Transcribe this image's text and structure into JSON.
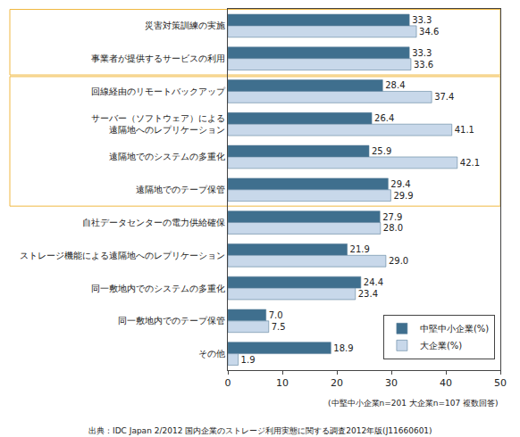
{
  "chart_data": {
    "type": "bar",
    "orientation": "horizontal",
    "categories": [
      "災害対策訓練の実施",
      "事業者が提供するサービスの利用",
      "回線経由のリモートバックアップ",
      "サーバー（ソフトウェア）による遠隔地へのレプリケーション",
      "遠隔地でのシステムの多重化",
      "遠隔地でのテープ保管",
      "自社データセンターの電力供給確保",
      "ストレージ機能による遠隔地へのレプリケーション",
      "同一敷地内でのシステムの多重化",
      "同一敷地内でのテープ保管",
      "その他"
    ],
    "series": [
      {
        "name": "中堅中小企業(%)",
        "color": "#3f6f8e",
        "values": [
          33.3,
          33.3,
          28.4,
          26.4,
          25.9,
          29.4,
          27.9,
          21.9,
          24.4,
          7.0,
          18.9
        ],
        "value_labels": [
          "33.3",
          "33.3",
          "28.4",
          "26.4",
          "25.9",
          "29.4",
          "27.9",
          "21.9",
          "24.4",
          "7.0",
          "18.9"
        ]
      },
      {
        "name": "大企業(%)",
        "color": "#c8d8ea",
        "values": [
          34.6,
          33.6,
          37.4,
          41.1,
          42.1,
          29.9,
          28.0,
          29.0,
          23.4,
          7.5,
          1.9
        ],
        "value_labels": [
          "34.6",
          "33.6",
          "37.4",
          "41.1",
          "42.1",
          "29.9",
          "28.0",
          "29.0",
          "23.4",
          "7.5",
          "1.9"
        ]
      }
    ],
    "xlim": [
      0,
      50
    ],
    "xticks": [
      0,
      10,
      20,
      30,
      40,
      50
    ],
    "grid": false,
    "legend": "lower right",
    "data_labels": true,
    "annotations": [
      "(中堅中小企業n=201 大企業n=107 複数回答)",
      "出典：IDC Japan 2/2012 国内企業のストレージ利用実態に関する調査2012年版(J11660601)"
    ]
  }
}
